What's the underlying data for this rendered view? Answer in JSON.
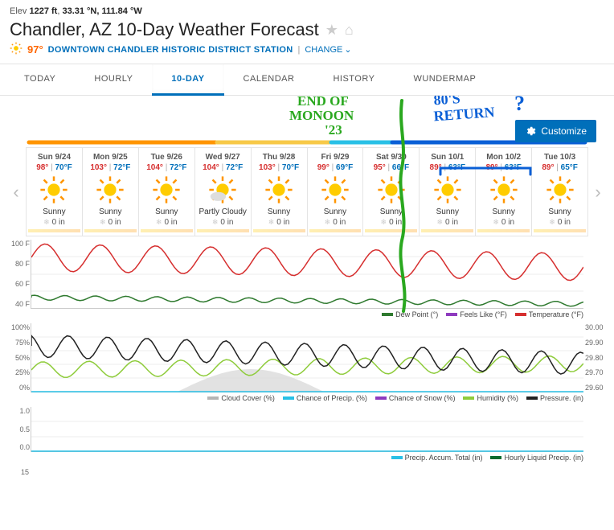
{
  "header": {
    "elev_label": "Elev",
    "elev_value": "1227 ft",
    "coords": "33.31 °N, 111.84 °W",
    "title": "Chandler, AZ 10-Day Weather Forecast",
    "current_temp": "97°",
    "station_label": "DOWNTOWN CHANDLER HISTORIC DISTRICT STATION",
    "divider": "|",
    "change_label": "CHANGE"
  },
  "tabs": [
    {
      "label": "TODAY",
      "active": false
    },
    {
      "label": "HOURLY",
      "active": false
    },
    {
      "label": "10-DAY",
      "active": true
    },
    {
      "label": "CALENDAR",
      "active": false
    },
    {
      "label": "HISTORY",
      "active": false
    },
    {
      "label": "WUNDERMAP",
      "active": false
    }
  ],
  "customize_label": "Customize",
  "days": [
    {
      "date": "Sun 9/24",
      "hi": "98°",
      "lo": "70°F",
      "cond": "Sunny",
      "precip": "0 in",
      "cloudy": false
    },
    {
      "date": "Mon 9/25",
      "hi": "103°",
      "lo": "72°F",
      "cond": "Sunny",
      "precip": "0 in",
      "cloudy": false
    },
    {
      "date": "Tue 9/26",
      "hi": "104°",
      "lo": "72°F",
      "cond": "Sunny",
      "precip": "0 in",
      "cloudy": false
    },
    {
      "date": "Wed 9/27",
      "hi": "104°",
      "lo": "72°F",
      "cond": "Partly Cloudy",
      "precip": "0 in",
      "cloudy": true
    },
    {
      "date": "Thu 9/28",
      "hi": "103°",
      "lo": "70°F",
      "cond": "Sunny",
      "precip": "0 in",
      "cloudy": false
    },
    {
      "date": "Fri 9/29",
      "hi": "99°",
      "lo": "69°F",
      "cond": "Sunny",
      "precip": "0 in",
      "cloudy": false
    },
    {
      "date": "Sat 9/30",
      "hi": "95°",
      "lo": "66°F",
      "cond": "Sunny",
      "precip": "0 in",
      "cloudy": false
    },
    {
      "date": "Sun 10/1",
      "hi": "89°",
      "lo": "63°F",
      "cond": "Sunny",
      "precip": "0 in",
      "cloudy": false
    },
    {
      "date": "Mon 10/2",
      "hi": "89°",
      "lo": "63°F",
      "cond": "Sunny",
      "precip": "0 in",
      "cloudy": false
    },
    {
      "date": "Tue 10/3",
      "hi": "89°",
      "lo": "65°F",
      "cond": "Sunny",
      "precip": "0 in",
      "cloudy": false
    }
  ],
  "annotations": {
    "text1": "END OF MONOON '23",
    "text2": "80'S RETURN?",
    "color_green": "#2aa81f",
    "color_blue": "#0a5fd6",
    "color_orange": "#ff9500",
    "color_yellow": "#f7c948",
    "color_cyan": "#29c0e6"
  },
  "chart1": {
    "type": "line",
    "ylabels": [
      "100 F",
      "80 F",
      "60 F",
      "40 F"
    ],
    "ylim": [
      35,
      105
    ],
    "colors": {
      "dew": "#2f7a2f",
      "feels": "#8e3bbf",
      "temp": "#d62f2f",
      "grid": "#eeeeee",
      "bg": "#ffffff"
    },
    "legend": [
      {
        "label": "Dew Point (°)",
        "color": "#2f7a2f"
      },
      {
        "label": "Feels Like (°F)",
        "color": "#8e3bbf"
      },
      {
        "label": "Temperature (°F)",
        "color": "#d62f2f"
      }
    ]
  },
  "chart2": {
    "type": "line",
    "ylabels_l": [
      "100%",
      "75%",
      "50%",
      "25%",
      "0%"
    ],
    "ylabels_r": [
      "30.00",
      "29.90",
      "29.80",
      "29.70",
      "29.60"
    ],
    "colors": {
      "cloud": "#b5b5b5",
      "precip": "#29c0e6",
      "snow": "#8e3bbf",
      "humidity": "#8fcc3c",
      "pressure": "#222222"
    },
    "legend": [
      {
        "label": "Cloud Cover (%)",
        "color": "#b5b5b5"
      },
      {
        "label": "Chance of Precip. (%)",
        "color": "#29c0e6"
      },
      {
        "label": "Chance of Snow (%)",
        "color": "#8e3bbf"
      },
      {
        "label": "Humidity (%)",
        "color": "#8fcc3c"
      },
      {
        "label": "Pressure. (in)",
        "color": "#222222"
      }
    ]
  },
  "chart3": {
    "type": "line",
    "ylabels": [
      "1.0",
      "0.5",
      "0.0"
    ],
    "legend": [
      {
        "label": "Precip. Accum. Total (in)",
        "color": "#29c0e6"
      },
      {
        "label": "Hourly Liquid Precip. (in)",
        "color": "#0b6b2f"
      }
    ]
  },
  "chart4_label": "15"
}
